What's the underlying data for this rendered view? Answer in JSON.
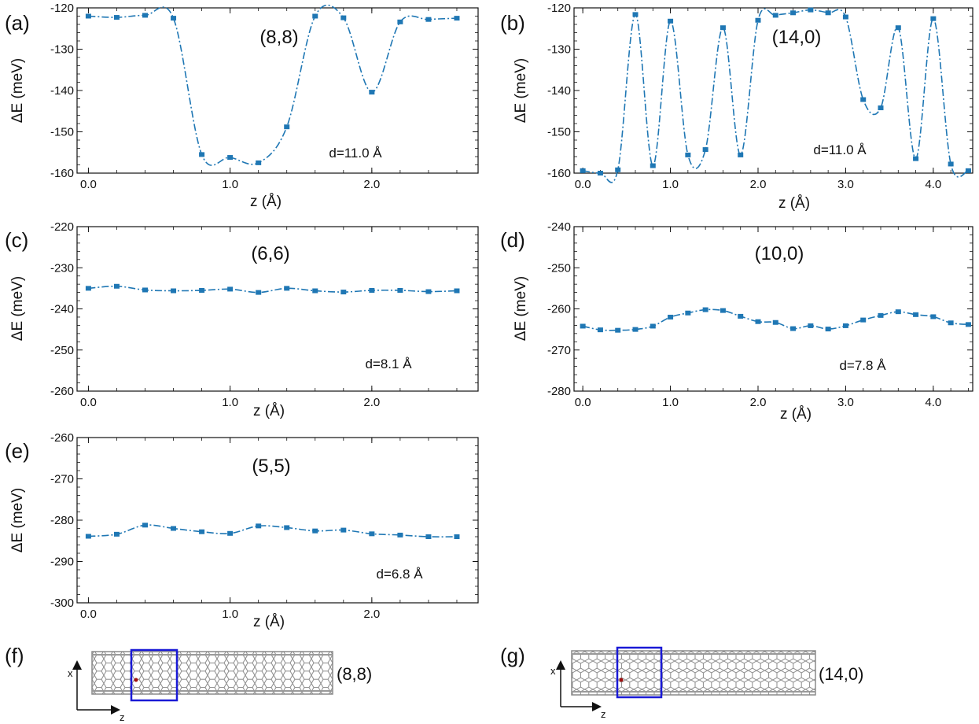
{
  "colors": {
    "series": "#1f77b4",
    "axes": "#111111",
    "highlight_box": "#1a1ad6",
    "tube_lattice": "#8a8a8a"
  },
  "chart_data": [
    {
      "panel": "(a)",
      "type": "line",
      "annotation": "(8,8)",
      "distance_label": "d=11.0 Å",
      "xlabel": "z (Å)",
      "ylabel": "ΔE (meV)",
      "xlim": [
        -0.08,
        2.75
      ],
      "ylim": [
        -160,
        -120
      ],
      "xticks": [
        0.0,
        1.0,
        2.0
      ],
      "xticklabels": [
        "0.0",
        "1.0",
        "2.0"
      ],
      "yticks": [
        -160,
        -150,
        -140,
        -130,
        -120
      ],
      "yticklabels": [
        "-160",
        "-150",
        "-140",
        "-130",
        "-120"
      ],
      "line_style": "dash-dot",
      "marker": "square",
      "grid": false,
      "series": [
        {
          "x": [
            0.0,
            0.2,
            0.4,
            0.6,
            0.8,
            1.0,
            1.2,
            1.4,
            1.6,
            1.8,
            2.0,
            2.2,
            2.4,
            2.6
          ],
          "values": [
            -122.0,
            -122.3,
            -121.8,
            -122.5,
            -155.5,
            -156.2,
            -157.5,
            -148.8,
            -122.0,
            -122.4,
            -140.4,
            -123.4,
            -122.8,
            -122.5
          ]
        }
      ]
    },
    {
      "panel": "(b)",
      "type": "line",
      "annotation": "(14,0)",
      "distance_label": "d=11.0 Å",
      "xlabel": "z (Å)",
      "ylabel": "ΔE (meV)",
      "xlim": [
        -0.1,
        4.45
      ],
      "ylim": [
        -160,
        -120
      ],
      "xticks": [
        0.0,
        1.0,
        2.0,
        3.0,
        4.0
      ],
      "xticklabels": [
        "0.0",
        "1.0",
        "2.0",
        "3.0",
        "4.0"
      ],
      "yticks": [
        -160,
        -150,
        -140,
        -130,
        -120
      ],
      "yticklabels": [
        "-160",
        "-150",
        "-140",
        "-130",
        "-120"
      ],
      "line_style": "dash-dot",
      "marker": "square",
      "grid": false,
      "series": [
        {
          "x": [
            0.0,
            0.2,
            0.4,
            0.6,
            0.8,
            1.0,
            1.2,
            1.4,
            1.6,
            1.8,
            2.0,
            2.2,
            2.4,
            2.6,
            2.8,
            3.0,
            3.2,
            3.4,
            3.6,
            3.8,
            4.0,
            4.2,
            4.4
          ],
          "values": [
            -159.4,
            -160.0,
            -159.2,
            -121.6,
            -158.2,
            -123.2,
            -155.6,
            -154.3,
            -124.8,
            -155.6,
            -123.0,
            -121.8,
            -121.2,
            -120.5,
            -121.2,
            -122.2,
            -142.2,
            -144.2,
            -124.8,
            -156.5,
            -122.6,
            -157.8,
            -159.4
          ]
        }
      ]
    },
    {
      "panel": "(c)",
      "type": "line",
      "annotation": "(6,6)",
      "distance_label": "d=8.1 Å",
      "xlabel": "z (Å)",
      "ylabel": "ΔE (meV)",
      "xlim": [
        -0.08,
        2.75
      ],
      "ylim": [
        -260,
        -220
      ],
      "xticks": [
        0.0,
        1.0,
        2.0
      ],
      "xticklabels": [
        "0.0",
        "1.0",
        "2.0"
      ],
      "yticks": [
        -260,
        -250,
        -240,
        -230,
        -220
      ],
      "yticklabels": [
        "-260",
        "-250",
        "-240",
        "-230",
        "-220"
      ],
      "line_style": "dash-dot",
      "marker": "square",
      "grid": false,
      "series": [
        {
          "x": [
            0.0,
            0.2,
            0.4,
            0.6,
            0.8,
            1.0,
            1.2,
            1.4,
            1.6,
            1.8,
            2.0,
            2.2,
            2.4,
            2.6
          ],
          "values": [
            -235.0,
            -234.5,
            -235.4,
            -235.6,
            -235.5,
            -235.2,
            -236.0,
            -235.0,
            -235.6,
            -235.9,
            -235.5,
            -235.5,
            -235.8,
            -235.6
          ]
        }
      ]
    },
    {
      "panel": "(d)",
      "type": "line",
      "annotation": "(10,0)",
      "distance_label": "d=7.8 Å",
      "xlabel": "z (Å)",
      "ylabel": "ΔE (meV)",
      "xlim": [
        -0.1,
        4.45
      ],
      "ylim": [
        -280,
        -240
      ],
      "xticks": [
        0.0,
        1.0,
        2.0,
        3.0,
        4.0
      ],
      "xticklabels": [
        "0.0",
        "1.0",
        "2.0",
        "3.0",
        "4.0"
      ],
      "yticks": [
        -280,
        -270,
        -260,
        -250,
        -240
      ],
      "yticklabels": [
        "-280",
        "-270",
        "-260",
        "-250",
        "-240"
      ],
      "line_style": "dash-dot",
      "marker": "square",
      "grid": false,
      "series": [
        {
          "x": [
            0.0,
            0.2,
            0.4,
            0.6,
            0.8,
            1.0,
            1.2,
            1.4,
            1.6,
            1.8,
            2.0,
            2.2,
            2.4,
            2.6,
            2.8,
            3.0,
            3.2,
            3.4,
            3.6,
            3.8,
            4.0,
            4.2,
            4.4
          ],
          "values": [
            -264.2,
            -265.1,
            -265.2,
            -265.0,
            -264.2,
            -262.0,
            -261.0,
            -260.2,
            -260.4,
            -261.8,
            -263.1,
            -263.3,
            -264.8,
            -264.1,
            -264.9,
            -264.1,
            -262.7,
            -261.6,
            -260.7,
            -261.4,
            -261.9,
            -263.4,
            -263.8
          ]
        }
      ]
    },
    {
      "panel": "(e)",
      "type": "line",
      "annotation": "(5,5)",
      "distance_label": "d=6.8 Å",
      "xlabel": "z (Å)",
      "ylabel": "ΔE (meV)",
      "xlim": [
        -0.08,
        2.75
      ],
      "ylim": [
        -300,
        -260
      ],
      "xticks": [
        0.0,
        1.0,
        2.0
      ],
      "xticklabels": [
        "0.0",
        "1.0",
        "2.0"
      ],
      "yticks": [
        -300,
        -290,
        -280,
        -270,
        -260
      ],
      "yticklabels": [
        "-300",
        "-290",
        "-280",
        "-270",
        "-260"
      ],
      "line_style": "dash-dot",
      "marker": "square",
      "grid": false,
      "series": [
        {
          "x": [
            0.0,
            0.2,
            0.4,
            0.6,
            0.8,
            1.0,
            1.2,
            1.4,
            1.6,
            1.8,
            2.0,
            2.2,
            2.4,
            2.6
          ],
          "values": [
            -283.9,
            -283.4,
            -281.2,
            -282.0,
            -282.8,
            -283.2,
            -281.4,
            -281.8,
            -282.6,
            -282.4,
            -283.3,
            -283.6,
            -284.0,
            -284.0
          ]
        }
      ]
    }
  ],
  "structures": [
    {
      "panel": "(f)",
      "label": "(8,8)",
      "axis_x_label": "x",
      "axis_z_label": "z"
    },
    {
      "panel": "(g)",
      "label": "(14,0)",
      "axis_x_label": "x",
      "axis_z_label": "z"
    }
  ]
}
